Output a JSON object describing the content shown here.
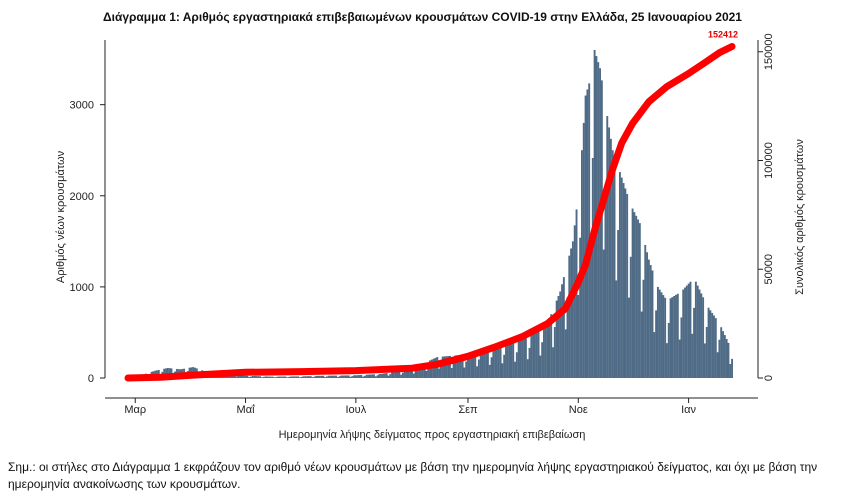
{
  "chart_data": {
    "type": "bar+line",
    "title": "Διάγραμμα 1: Αριθμός εργαστηριακά επιβεβαιωμένων κρουσμάτων COVID-19 στην Ελλάδα, 25 Ιανουαρίου 2021",
    "xlabel": "Ημερομηνία λήψης δείγματος προς εργαστηριακή επιβεβαίωση",
    "ylabel_left": "Αριθμός νέων κρουσμάτων",
    "ylabel_right": "Συνολικός αριθμός κρουσμάτων",
    "x_start": "2020-02-26",
    "x_end": "2021-01-25",
    "x_ticks": [
      {
        "label": "Μαρ",
        "date": "2020-03-01"
      },
      {
        "label": "Μαΐ",
        "date": "2020-05-01"
      },
      {
        "label": "Ιουλ",
        "date": "2020-07-01"
      },
      {
        "label": "Σεπ",
        "date": "2020-09-01"
      },
      {
        "label": "Νοε",
        "date": "2020-11-01"
      },
      {
        "label": "Ιαν",
        "date": "2021-01-01"
      }
    ],
    "ylim_left": [
      0,
      3600
    ],
    "yticks_left": [
      "0",
      "1000",
      "2000",
      "3000"
    ],
    "ylim_right": [
      0,
      160000
    ],
    "yticks_right": [
      "0",
      "50000",
      "100000",
      "150000"
    ],
    "bars_color": "#4f6b86",
    "line_color": "#ff0000",
    "daily_new_cases": [
      {
        "date": "2020-02-26",
        "value": 3
      },
      {
        "date": "2020-03-05",
        "value": 35
      },
      {
        "date": "2020-03-12",
        "value": 80
      },
      {
        "date": "2020-03-19",
        "value": 110
      },
      {
        "date": "2020-03-26",
        "value": 95
      },
      {
        "date": "2020-04-02",
        "value": 120
      },
      {
        "date": "2020-04-09",
        "value": 70
      },
      {
        "date": "2020-04-16",
        "value": 45
      },
      {
        "date": "2020-04-23",
        "value": 40
      },
      {
        "date": "2020-05-01",
        "value": 25
      },
      {
        "date": "2020-05-15",
        "value": 15
      },
      {
        "date": "2020-06-01",
        "value": 18
      },
      {
        "date": "2020-06-15",
        "value": 25
      },
      {
        "date": "2020-07-01",
        "value": 30
      },
      {
        "date": "2020-07-15",
        "value": 45
      },
      {
        "date": "2020-08-01",
        "value": 100
      },
      {
        "date": "2020-08-15",
        "value": 230
      },
      {
        "date": "2020-09-01",
        "value": 260
      },
      {
        "date": "2020-09-15",
        "value": 330
      },
      {
        "date": "2020-10-01",
        "value": 420
      },
      {
        "date": "2020-10-15",
        "value": 600
      },
      {
        "date": "2020-10-22",
        "value": 950
      },
      {
        "date": "2020-10-29",
        "value": 1500
      },
      {
        "date": "2020-11-02",
        "value": 2200
      },
      {
        "date": "2020-11-05",
        "value": 3100
      },
      {
        "date": "2020-11-08",
        "value": 3300
      },
      {
        "date": "2020-11-10",
        "value": 3600
      },
      {
        "date": "2020-11-13",
        "value": 3400
      },
      {
        "date": "2020-11-16",
        "value": 3000
      },
      {
        "date": "2020-11-20",
        "value": 2500
      },
      {
        "date": "2020-11-25",
        "value": 2200
      },
      {
        "date": "2020-11-30",
        "value": 1900
      },
      {
        "date": "2020-12-05",
        "value": 1700
      },
      {
        "date": "2020-12-10",
        "value": 1300
      },
      {
        "date": "2020-12-15",
        "value": 1000
      },
      {
        "date": "2020-12-20",
        "value": 850
      },
      {
        "date": "2020-12-28",
        "value": 950
      },
      {
        "date": "2021-01-04",
        "value": 1100
      },
      {
        "date": "2021-01-11",
        "value": 800
      },
      {
        "date": "2021-01-18",
        "value": 600
      },
      {
        "date": "2021-01-25",
        "value": 300
      }
    ],
    "cumulative_cases": [
      {
        "date": "2020-02-26",
        "value": 0
      },
      {
        "date": "2020-03-15",
        "value": 300
      },
      {
        "date": "2020-04-01",
        "value": 1300
      },
      {
        "date": "2020-05-01",
        "value": 2600
      },
      {
        "date": "2020-06-01",
        "value": 2950
      },
      {
        "date": "2020-07-01",
        "value": 3400
      },
      {
        "date": "2020-08-01",
        "value": 4500
      },
      {
        "date": "2020-08-15",
        "value": 6300
      },
      {
        "date": "2020-09-01",
        "value": 10000
      },
      {
        "date": "2020-09-15",
        "value": 14000
      },
      {
        "date": "2020-10-01",
        "value": 19000
      },
      {
        "date": "2020-10-15",
        "value": 25000
      },
      {
        "date": "2020-10-25",
        "value": 32000
      },
      {
        "date": "2020-11-01",
        "value": 44000
      },
      {
        "date": "2020-11-05",
        "value": 52000
      },
      {
        "date": "2020-11-10",
        "value": 68000
      },
      {
        "date": "2020-11-15",
        "value": 82000
      },
      {
        "date": "2020-11-20",
        "value": 96000
      },
      {
        "date": "2020-11-25",
        "value": 108000
      },
      {
        "date": "2020-12-01",
        "value": 117000
      },
      {
        "date": "2020-12-10",
        "value": 127000
      },
      {
        "date": "2020-12-20",
        "value": 134000
      },
      {
        "date": "2021-01-01",
        "value": 140000
      },
      {
        "date": "2021-01-10",
        "value": 145000
      },
      {
        "date": "2021-01-18",
        "value": 149500
      },
      {
        "date": "2021-01-25",
        "value": 152412
      }
    ],
    "annotations": [
      {
        "text": "152412",
        "date": "2021-01-25",
        "value": 152412
      }
    ],
    "grid": false,
    "legend": "none"
  },
  "footnote": "Σημ.: οι στήλες στο Διάγραμμα 1 εκφράζουν τον αριθμό νέων κρουσμάτων με βάση την ημερομηνία λήψης εργαστηριακού δείγματος, και όχι με βάση την ημερομηνία ανακοίνωσης των κρουσμάτων."
}
